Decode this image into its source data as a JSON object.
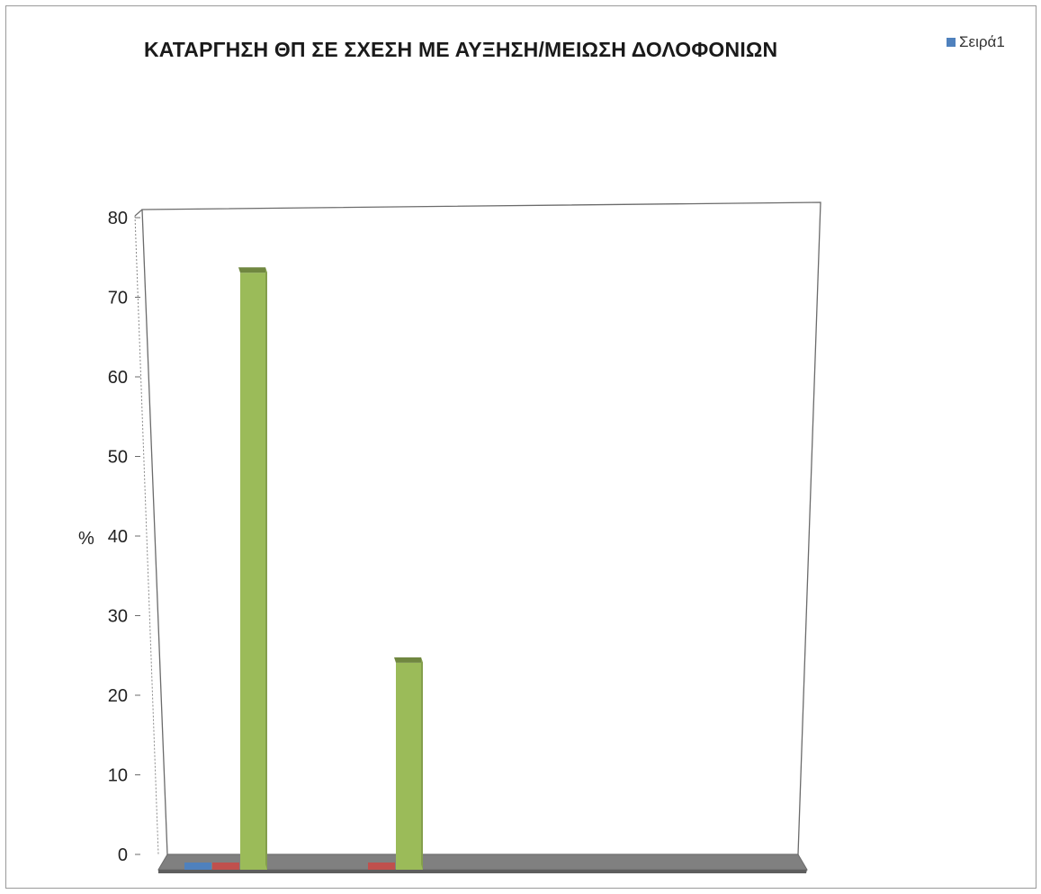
{
  "chart_data": {
    "type": "bar",
    "title": "ΚΑΤΑΡΓΗΣΗ ΘΠ ΣΕ ΣΧΕΣΗ ΜΕ ΑΥΞΗΣΗ/ΜΕΙΩΣΗ ΔΟΛΟΦΟΝΙΩΝ",
    "ylabel": "%",
    "xlabel": "",
    "ylim": [
      0,
      80
    ],
    "yticks": [
      "0",
      "10",
      "20",
      "30",
      "40",
      "50",
      "60",
      "70",
      "80"
    ],
    "categories": [
      "",
      ""
    ],
    "series": [
      {
        "name": "Σειρά1",
        "color": "#4F81BD",
        "values": [
          0,
          null
        ]
      },
      {
        "color": "#C0504D",
        "values": [
          0,
          0
        ]
      },
      {
        "color": "#9BBB59",
        "values": [
          75,
          26
        ]
      }
    ],
    "three_d": true,
    "grid": false,
    "legend_position": "top-right"
  }
}
